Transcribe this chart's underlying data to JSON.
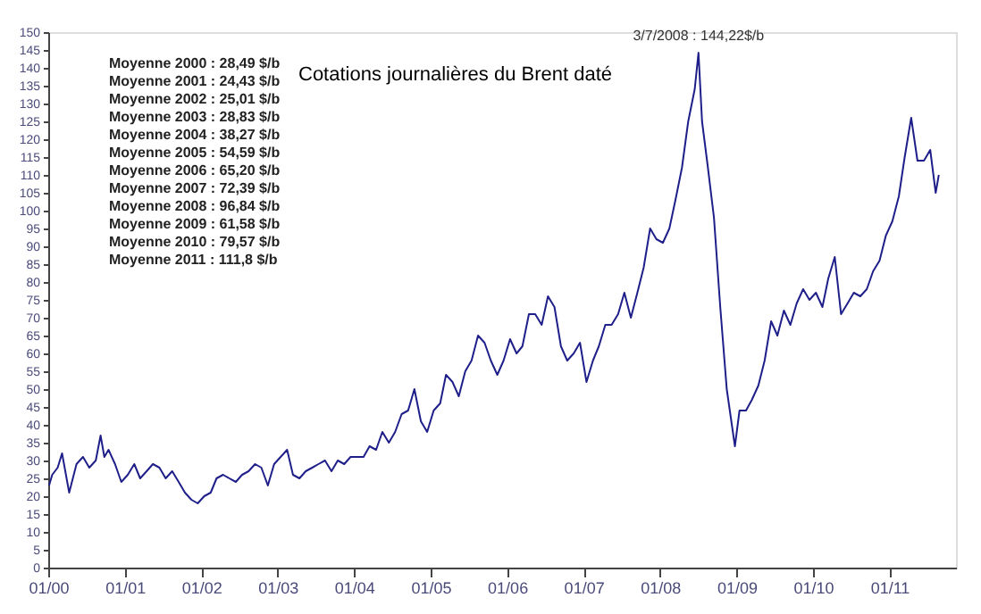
{
  "chart_data": {
    "type": "line",
    "title": "Cotations journalières du Brent daté",
    "annotations": [
      "Moyenne 2000 : 28,49 $/b",
      "Moyenne 2001 : 24,43 $/b",
      "Moyenne 2002 : 25,01 $/b",
      "Moyenne 2003 : 28,83 $/b",
      "Moyenne 2004 : 38,27 $/b",
      "Moyenne 2005 : 54,59 $/b",
      "Moyenne 2006 : 65,20 $/b",
      "Moyenne 2007 : 72,39 $/b",
      "Moyenne 2008 : 96,84 $/b",
      "Moyenne 2009 : 61,58 $/b",
      "Moyenne 2010 : 79,57 $/b",
      "Moyenne 2011 : 111,8 $/b",
      {
        "text": "3/7/2008 : 144,22$/b",
        "x": "2008-07-03",
        "y": 144.22
      }
    ],
    "x": [
      "2000-01-05",
      "2000-01-20",
      "2000-02-15",
      "2000-03-07",
      "2000-04-10",
      "2000-05-15",
      "2000-06-15",
      "2000-07-15",
      "2000-08-15",
      "2000-09-07",
      "2000-09-25",
      "2000-10-15",
      "2000-11-15",
      "2000-12-15",
      "2001-01-15",
      "2001-02-15",
      "2001-03-15",
      "2001-04-15",
      "2001-05-15",
      "2001-06-15",
      "2001-07-15",
      "2001-08-15",
      "2001-09-15",
      "2001-10-15",
      "2001-11-15",
      "2001-12-15",
      "2002-01-15",
      "2002-02-15",
      "2002-03-15",
      "2002-04-15",
      "2002-05-15",
      "2002-06-15",
      "2002-07-15",
      "2002-08-15",
      "2002-09-15",
      "2002-10-15",
      "2002-11-15",
      "2002-12-15",
      "2003-01-15",
      "2003-02-15",
      "2003-03-15",
      "2003-04-15",
      "2003-05-15",
      "2003-06-15",
      "2003-07-15",
      "2003-08-15",
      "2003-09-15",
      "2003-10-15",
      "2003-11-15",
      "2003-12-15",
      "2004-01-15",
      "2004-02-15",
      "2004-03-15",
      "2004-04-15",
      "2004-05-15",
      "2004-06-15",
      "2004-07-15",
      "2004-08-15",
      "2004-09-15",
      "2004-10-15",
      "2004-11-15",
      "2004-12-15",
      "2005-01-15",
      "2005-02-15",
      "2005-03-15",
      "2005-04-15",
      "2005-05-15",
      "2005-06-15",
      "2005-07-15",
      "2005-08-15",
      "2005-09-15",
      "2005-10-15",
      "2005-11-15",
      "2005-12-15",
      "2006-01-15",
      "2006-02-15",
      "2006-03-15",
      "2006-04-15",
      "2006-05-15",
      "2006-06-15",
      "2006-07-15",
      "2006-08-15",
      "2006-09-15",
      "2006-10-15",
      "2006-11-15",
      "2006-12-15",
      "2007-01-15",
      "2007-02-15",
      "2007-03-15",
      "2007-04-15",
      "2007-05-15",
      "2007-06-15",
      "2007-07-15",
      "2007-08-15",
      "2007-09-15",
      "2007-10-15",
      "2007-11-15",
      "2007-12-15",
      "2008-01-15",
      "2008-02-15",
      "2008-03-15",
      "2008-04-15",
      "2008-05-15",
      "2008-06-15",
      "2008-07-03",
      "2008-07-20",
      "2008-08-15",
      "2008-09-15",
      "2008-10-15",
      "2008-11-15",
      "2008-12-24",
      "2009-01-15",
      "2009-02-15",
      "2009-03-15",
      "2009-04-15",
      "2009-05-15",
      "2009-06-15",
      "2009-07-15",
      "2009-08-15",
      "2009-09-15",
      "2009-10-15",
      "2009-11-15",
      "2009-12-15",
      "2010-01-15",
      "2010-02-15",
      "2010-03-15",
      "2010-04-15",
      "2010-05-15",
      "2010-06-15",
      "2010-07-15",
      "2010-08-15",
      "2010-09-15",
      "2010-10-15",
      "2010-11-15",
      "2010-12-15",
      "2011-01-15",
      "2011-02-15",
      "2011-03-15",
      "2011-04-15",
      "2011-05-15",
      "2011-06-15",
      "2011-07-15",
      "2011-08-10",
      "2011-08-25"
    ],
    "series": [
      {
        "color": "#1f1f8a",
        "values": [
          23,
          26,
          28,
          32,
          21,
          29,
          31,
          28,
          30,
          37,
          31,
          33,
          29,
          24,
          26,
          29,
          25,
          27,
          29,
          28,
          25,
          27,
          24,
          21,
          19,
          18,
          20,
          21,
          25,
          26,
          25,
          24,
          26,
          27,
          29,
          28,
          23,
          29,
          31,
          33,
          26,
          25,
          27,
          28,
          29,
          30,
          27,
          30,
          29,
          31,
          31,
          31,
          34,
          33,
          38,
          35,
          38,
          43,
          44,
          50,
          41,
          38,
          44,
          46,
          54,
          52,
          48,
          55,
          58,
          65,
          63,
          58,
          54,
          58,
          64,
          60,
          62,
          71,
          71,
          68,
          76,
          73,
          62,
          58,
          60,
          63,
          52,
          58,
          62,
          68,
          68,
          71,
          77,
          70,
          77,
          84,
          95,
          92,
          91,
          95,
          103,
          112,
          125,
          134,
          144.22,
          125,
          113,
          98,
          73,
          50,
          34,
          44,
          44,
          47,
          51,
          58,
          69,
          65,
          72,
          68,
          74,
          78,
          75,
          77,
          73,
          81,
          87,
          71,
          74,
          77,
          76,
          78,
          83,
          86,
          93,
          97,
          104,
          115,
          126,
          114,
          114,
          117,
          105,
          110
        ]
      }
    ],
    "xlim": [
      "2000-01-01",
      "2011-11-15"
    ],
    "xticks": [
      {
        "value": "2000-01-01",
        "label": "01/00"
      },
      {
        "value": "2001-01-01",
        "label": "01/01"
      },
      {
        "value": "2002-01-01",
        "label": "01/02"
      },
      {
        "value": "2003-01-01",
        "label": "01/03"
      },
      {
        "value": "2004-01-01",
        "label": "01/04"
      },
      {
        "value": "2005-01-01",
        "label": "01/05"
      },
      {
        "value": "2006-01-01",
        "label": "01/06"
      },
      {
        "value": "2007-01-01",
        "label": "01/07"
      },
      {
        "value": "2008-01-01",
        "label": "01/08"
      },
      {
        "value": "2009-01-01",
        "label": "01/09"
      },
      {
        "value": "2010-01-01",
        "label": "01/10"
      },
      {
        "value": "2011-01-01",
        "label": "01/11"
      }
    ],
    "ylim": [
      0,
      150
    ],
    "yticks": [
      0,
      5,
      10,
      15,
      20,
      25,
      30,
      35,
      40,
      45,
      50,
      55,
      60,
      65,
      70,
      75,
      80,
      85,
      90,
      95,
      100,
      105,
      110,
      115,
      120,
      125,
      130,
      135,
      140,
      145,
      150
    ],
    "grid": false,
    "legend": false,
    "marker": "none",
    "line_style": "solid"
  }
}
